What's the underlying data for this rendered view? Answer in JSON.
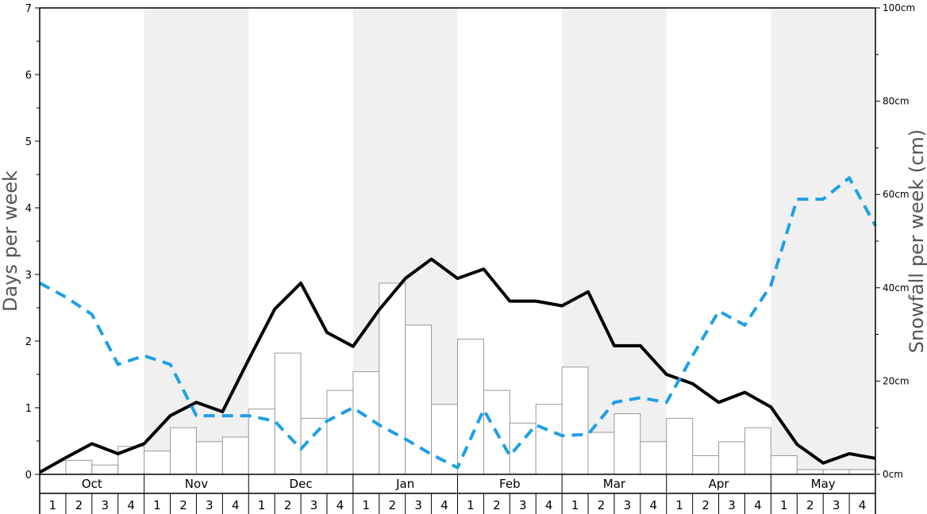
{
  "chart_data": {
    "type": "bar",
    "left_axis": {
      "label": "Days per week",
      "ylim": [
        0,
        7
      ],
      "major_ticks": [
        0,
        1,
        2,
        3,
        4,
        5,
        6,
        7
      ]
    },
    "right_axis": {
      "label": "Snowfall per week (cm)",
      "ylim": [
        0,
        100
      ],
      "ticks": [
        {
          "value": 0,
          "label": "0cm"
        },
        {
          "value": 20,
          "label": "20cm"
        },
        {
          "value": 40,
          "label": "40cm"
        },
        {
          "value": 60,
          "label": "60cm"
        },
        {
          "value": 80,
          "label": "80cm"
        },
        {
          "value": 100,
          "label": "100cm"
        }
      ]
    },
    "months": [
      "Oct",
      "Nov",
      "Dec",
      "Jan",
      "Feb",
      "Mar",
      "Apr",
      "May"
    ],
    "weeks": [
      "1",
      "2",
      "3",
      "4"
    ],
    "shaded_months": [
      "Nov",
      "Jan",
      "Mar",
      "May"
    ],
    "series": [
      {
        "kind": "bar",
        "axis": "right",
        "color": "#ffffff",
        "stroke": "#999999",
        "values": [
          0,
          3,
          2,
          6,
          5,
          10,
          7,
          8,
          14,
          26,
          12,
          18,
          22,
          41,
          32,
          15,
          29,
          18,
          11,
          15,
          23,
          9,
          13,
          7,
          12,
          4,
          7,
          10,
          4,
          1,
          1,
          1
        ]
      },
      {
        "kind": "line",
        "axis": "left",
        "color": "#000000",
        "dashed": false,
        "values": [
          0.03,
          0.25,
          0.46,
          0.31,
          0.46,
          0.88,
          1.08,
          0.94,
          1.72,
          2.48,
          2.87,
          2.13,
          1.92,
          2.47,
          2.94,
          3.23,
          2.94,
          3.08,
          2.6,
          2.6,
          2.53,
          2.74,
          1.93,
          1.93,
          1.5,
          1.36,
          1.08,
          1.23,
          1.01,
          0.45,
          0.17,
          0.31,
          0.24
        ]
      },
      {
        "kind": "line",
        "axis": "left",
        "color": "#1ea0e6",
        "dashed": true,
        "values": [
          2.87,
          2.66,
          2.4,
          1.65,
          1.78,
          1.65,
          0.88,
          0.88,
          0.88,
          0.8,
          0.38,
          0.8,
          1.0,
          0.74,
          0.53,
          0.3,
          0.1,
          0.97,
          0.28,
          0.74,
          0.58,
          0.6,
          1.08,
          1.15,
          1.08,
          1.78,
          2.45,
          2.24,
          2.84,
          4.13,
          4.13,
          4.45,
          3.73
        ]
      }
    ]
  }
}
